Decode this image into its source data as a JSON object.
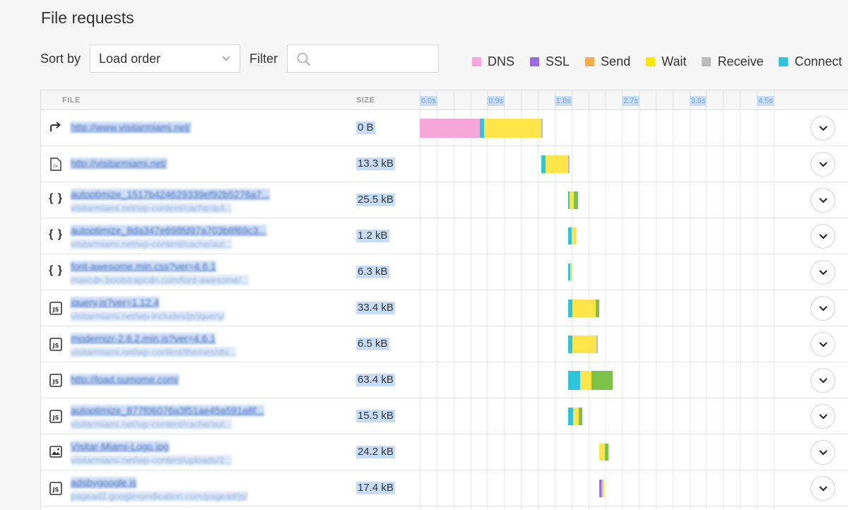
{
  "title": "File requests",
  "controls": {
    "sort_label": "Sort by",
    "sort_value": "Load order",
    "filter_label": "Filter",
    "filter_placeholder": ""
  },
  "legend": [
    {
      "label": "DNS",
      "color": "#f7a6d9"
    },
    {
      "label": "SSL",
      "color": "#9b6ce0"
    },
    {
      "label": "Send",
      "color": "#f5ac4d"
    },
    {
      "label": "Wait",
      "color": "#ffe600"
    },
    {
      "label": "Receive",
      "color": "#bcbcbc"
    },
    {
      "label": "Connect",
      "color": "#2ec4dc"
    }
  ],
  "table": {
    "col_file": "FILE",
    "col_size": "SIZE",
    "ticks": [
      "0.0s",
      "0.9s",
      "1.8s",
      "2.7s",
      "3.6s",
      "4.5s"
    ],
    "rows": [
      {
        "icon": "redirect-icon",
        "name": "http://www.visitarmiami.net/",
        "path": "",
        "size": "0 B",
        "segments": [
          {
            "type": "dns",
            "start": 0.0,
            "dur": 0.8
          },
          {
            "type": "connect",
            "start": 0.8,
            "dur": 0.06
          },
          {
            "type": "wait",
            "start": 0.86,
            "dur": 0.76
          },
          {
            "type": "receive",
            "start": 1.62,
            "dur": 0.02
          }
        ]
      },
      {
        "icon": "html-file-icon",
        "name": "http://visitarmiami.net/",
        "path": "",
        "size": "13.3 kB",
        "segments": [
          {
            "type": "connect",
            "start": 1.62,
            "dur": 0.06
          },
          {
            "type": "wait",
            "start": 1.68,
            "dur": 0.3
          },
          {
            "type": "receive",
            "start": 1.98,
            "dur": 0.02
          }
        ]
      },
      {
        "icon": "css-file-icon",
        "name": "autoptimize_1517b424629339ef92b5276a7...",
        "path": "visitarmiami.net/wp-content/cache/aut...",
        "size": "25.5 kB",
        "segments": [
          {
            "type": "connect",
            "start": 1.98,
            "dur": 0.02
          },
          {
            "type": "wait",
            "start": 2.0,
            "dur": 0.06
          },
          {
            "type": "receive-green",
            "start": 2.06,
            "dur": 0.05
          }
        ]
      },
      {
        "icon": "css-file-icon",
        "name": "autoptimize_8da347e698fd97a703b8f69c3...",
        "path": "visitarmiami.net/wp-content/cache/aut...",
        "size": "1.2 kB",
        "segments": [
          {
            "type": "connect",
            "start": 1.98,
            "dur": 0.05
          },
          {
            "type": "wait",
            "start": 2.03,
            "dur": 0.06
          }
        ]
      },
      {
        "icon": "css-file-icon",
        "name": "font-awesome.min.css?ver=4.6.1",
        "path": "maxcdn.bootstrapcdn.com/font-awesome/...",
        "size": "6.3 kB",
        "segments": [
          {
            "type": "connect",
            "start": 1.98,
            "dur": 0.03
          },
          {
            "type": "wait",
            "start": 2.01,
            "dur": 0.03
          }
        ]
      },
      {
        "icon": "js-file-icon",
        "name": "jquery.js?ver=1.12.4",
        "path": "visitarmiami.net/wp-includes/js/jquery/",
        "size": "33.4 kB",
        "segments": [
          {
            "type": "connect",
            "start": 1.98,
            "dur": 0.06
          },
          {
            "type": "wait",
            "start": 2.04,
            "dur": 0.31
          },
          {
            "type": "receive-green",
            "start": 2.35,
            "dur": 0.05
          }
        ]
      },
      {
        "icon": "js-file-icon",
        "name": "modernizr-2.6.2.min.js?ver=4.6.1",
        "path": "visitarmiami.net/wp-content/themes/div...",
        "size": "6.5 kB",
        "segments": [
          {
            "type": "connect",
            "start": 1.98,
            "dur": 0.06
          },
          {
            "type": "wait",
            "start": 2.04,
            "dur": 0.32
          },
          {
            "type": "receive",
            "start": 2.36,
            "dur": 0.01
          }
        ]
      },
      {
        "icon": "js-file-icon",
        "name": "http://load.sumome.com/",
        "path": "",
        "size": "63.4 kB",
        "segments": [
          {
            "type": "connect",
            "start": 1.98,
            "dur": 0.16
          },
          {
            "type": "wait",
            "start": 2.14,
            "dur": 0.15
          },
          {
            "type": "receive-green",
            "start": 2.29,
            "dur": 0.29
          }
        ]
      },
      {
        "icon": "js-file-icon",
        "name": "autoptimize_877f06076a3f51ae45a591a8f...",
        "path": "visitarmiami.net/wp-content/cache/aut...",
        "size": "15.5 kB",
        "segments": [
          {
            "type": "connect",
            "start": 1.98,
            "dur": 0.07
          },
          {
            "type": "wait",
            "start": 2.05,
            "dur": 0.07
          },
          {
            "type": "receive-green",
            "start": 2.12,
            "dur": 0.05
          }
        ]
      },
      {
        "icon": "image-file-icon",
        "name": "Visitar-Miami-Logo.jpg",
        "path": "visitarmiami.net/wp-content/uploads/2...",
        "size": "24.2 kB",
        "segments": [
          {
            "type": "wait",
            "start": 2.4,
            "dur": 0.07
          },
          {
            "type": "receive-green",
            "start": 2.47,
            "dur": 0.05
          }
        ]
      },
      {
        "icon": "js-file-icon",
        "name": "adsbygoogle.js",
        "path": "pagead2.googlesyndication.com/pagead/js/",
        "size": "17.4 kB",
        "segments": [
          {
            "type": "ssl",
            "start": 2.4,
            "dur": 0.02
          },
          {
            "type": "receive",
            "start": 2.42,
            "dur": 0.02
          },
          {
            "type": "wait",
            "start": 2.44,
            "dur": 0.02
          }
        ]
      }
    ]
  }
}
